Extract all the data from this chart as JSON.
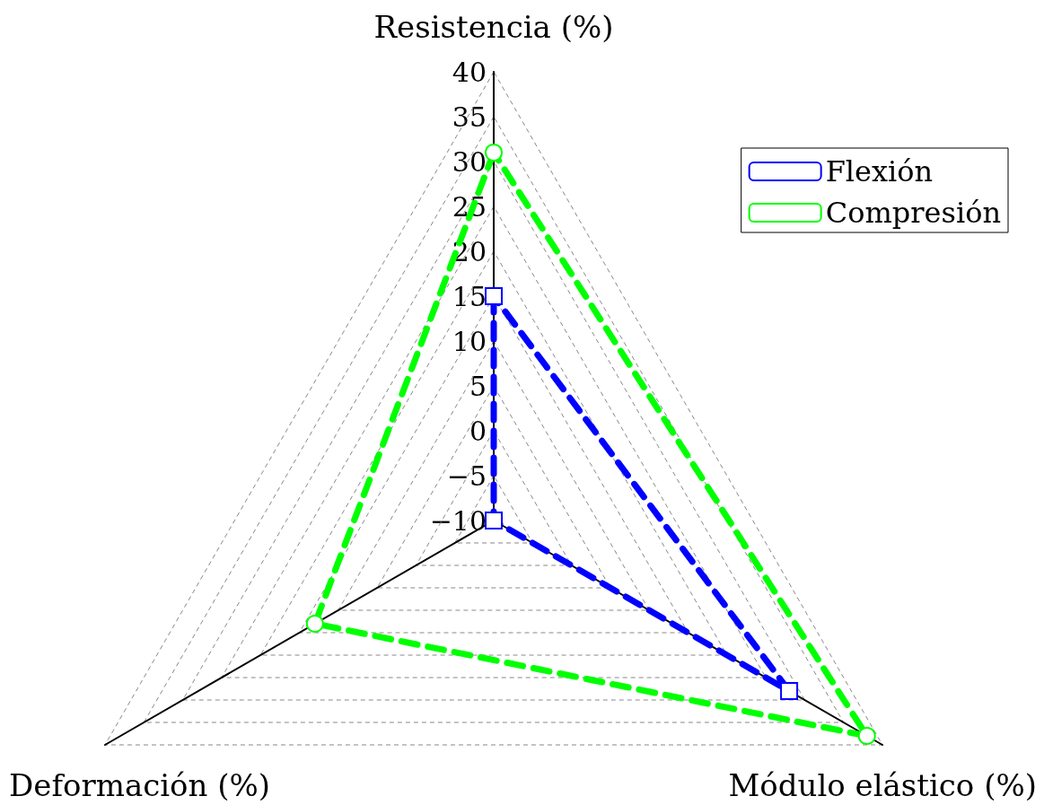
{
  "chart_data": {
    "type": "radar",
    "categories": [
      "Resistencia (%)",
      "Módulo elástico (%)",
      "Deformación (%)"
    ],
    "series": [
      {
        "name": "Flexión",
        "color": "#0000ff",
        "marker": "square",
        "values": [
          15,
          28,
          -10
        ]
      },
      {
        "name": "Compresión",
        "color": "#00ff00",
        "marker": "circle",
        "values": [
          31,
          38,
          13
        ]
      }
    ],
    "ylim": [
      -10,
      40
    ],
    "yticks": [
      -10,
      -5,
      0,
      5,
      10,
      15,
      20,
      25,
      30,
      35,
      40
    ],
    "line_style": "dashed",
    "grid": true,
    "legend": "top right"
  }
}
